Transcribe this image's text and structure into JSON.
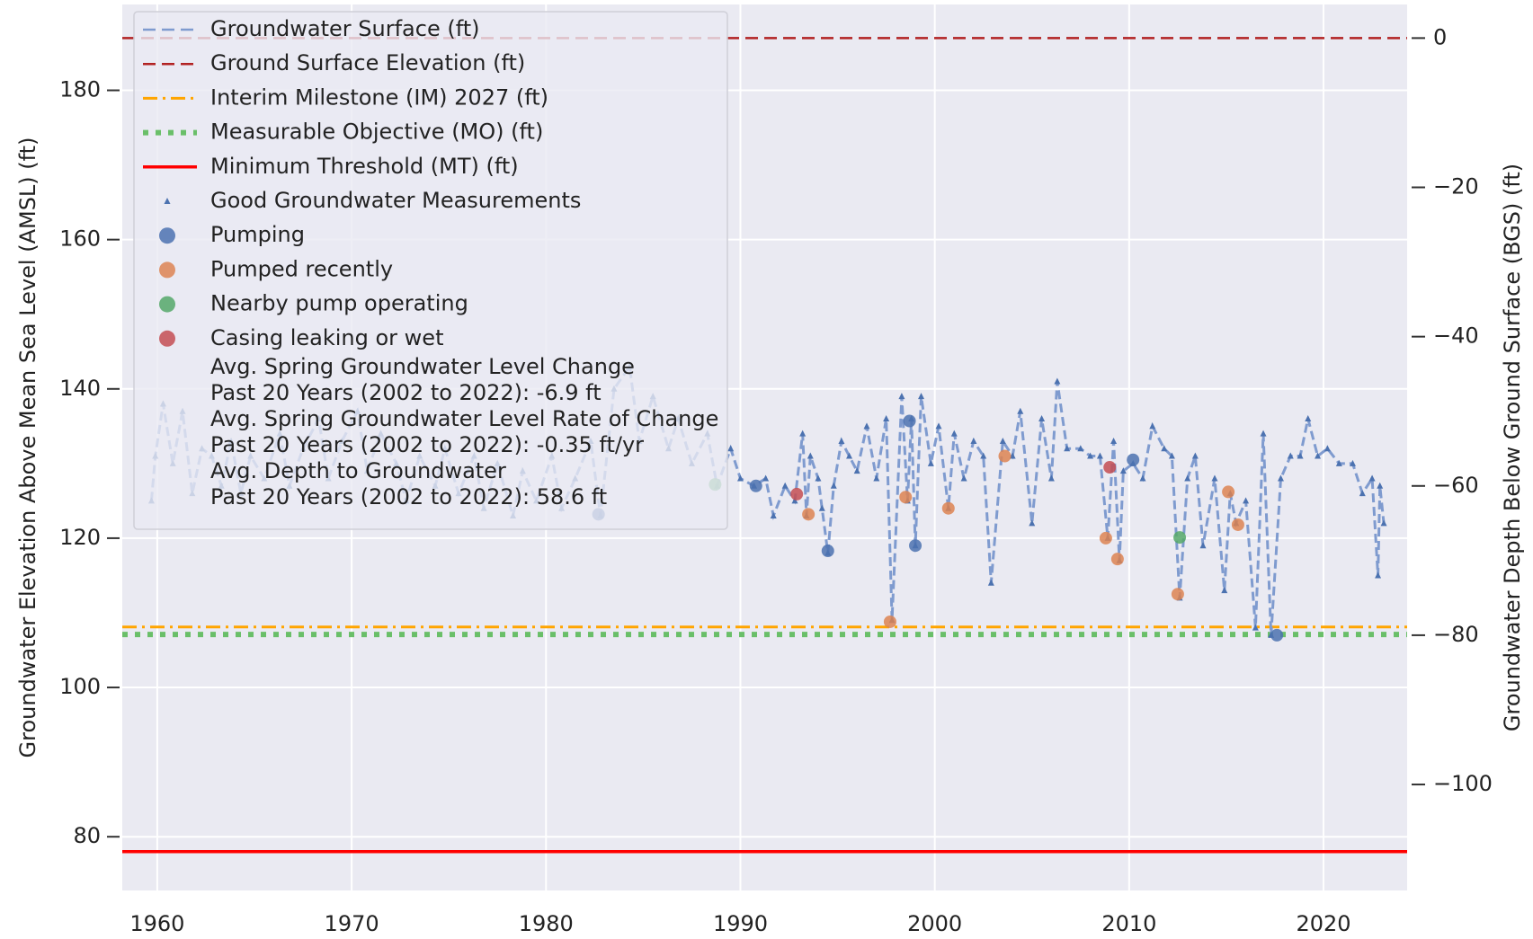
{
  "chart_data": {
    "type": "line",
    "y_label": "Groundwater Elevation Above Mean Sea Level (AMSL) (ft)",
    "y2_label": "Groundwater Depth Below Ground Surface (BGS) (ft)",
    "xlim": [
      1958.2,
      2024.3
    ],
    "ylim": [
      72.8,
      191.5
    ],
    "y2lim": [
      -114.2,
      4.5
    ],
    "xticks": [
      1960,
      1970,
      1980,
      1990,
      2000,
      2010,
      2020
    ],
    "yticks": [
      80,
      100,
      120,
      140,
      160,
      180
    ],
    "y2ticks": [
      0,
      {
        "value": -20,
        "label": "−20"
      },
      {
        "value": -40,
        "label": "−40"
      },
      {
        "value": -60,
        "label": "−60"
      },
      {
        "value": -80,
        "label": "−80"
      },
      {
        "value": -100,
        "label": "−100"
      }
    ],
    "grid": true,
    "legend": "upper left",
    "series": [
      {
        "name": "Groundwater Surface (ft)",
        "color": "#7f9bcf",
        "marker_name": "Good Groundwater Measurements",
        "marker_color": "#4c72b0",
        "x": [
          1959.7,
          1959.9,
          1960.3,
          1960.8,
          1961.3,
          1961.8,
          1962.3,
          1962.8,
          1963.3,
          1963.8,
          1964.3,
          1964.8,
          1965.5,
          1966.3,
          1966.8,
          1967.5,
          1968.3,
          1968.8,
          1969.5,
          1970.3,
          1970.8,
          1971.5,
          1972.3,
          1972.8,
          1973.5,
          1974.3,
          1974.8,
          1975.5,
          1976.3,
          1976.8,
          1977.5,
          1978.3,
          1978.8,
          1979.5,
          1980.3,
          1980.8,
          1981.5,
          1982.3,
          1982.8,
          1983.5,
          1984.3,
          1984.8,
          1985.5,
          1986.3,
          1986.8,
          1987.5,
          1988.3,
          1988.8,
          1989.5,
          1990.0,
          1990.7,
          1991.3,
          1991.7,
          1992.3,
          1992.8,
          1993.2,
          1993.4,
          1993.6,
          1994.0,
          1994.2,
          1994.5,
          1994.8,
          1995.2,
          1995.6,
          1996.0,
          1996.5,
          1997.0,
          1997.5,
          1997.8,
          1998.3,
          1998.6,
          1998.8,
          1999.0,
          1999.3,
          1999.8,
          2000.2,
          2000.7,
          2001.0,
          2001.5,
          2002.0,
          2002.5,
          2002.9,
          2003.5,
          2004.0,
          2004.4,
          2005.0,
          2005.5,
          2006.0,
          2006.3,
          2006.8,
          2007.5,
          2008.0,
          2008.5,
          2008.9,
          2009.2,
          2009.5,
          2009.7,
          2010.2,
          2010.7,
          2011.2,
          2011.8,
          2012.2,
          2012.6,
          2013.0,
          2013.4,
          2013.8,
          2014.4,
          2014.9,
          2015.2,
          2015.5,
          2016.0,
          2016.5,
          2016.9,
          2017.3,
          2017.8,
          2018.3,
          2018.8,
          2019.2,
          2019.7,
          2020.2,
          2020.8,
          2021.5,
          2022.0,
          2022.5,
          2022.8,
          2022.9,
          2023.1
        ],
        "values": [
          125,
          131,
          138,
          130,
          137,
          126,
          132,
          131,
          127,
          133,
          126,
          131,
          128,
          134,
          127,
          132,
          136,
          128,
          133,
          137,
          129,
          134,
          130,
          125,
          131,
          127,
          132,
          126,
          131,
          124,
          130,
          123,
          129,
          125,
          131,
          124,
          128,
          133,
          123,
          140,
          143,
          133,
          139,
          132,
          136,
          130,
          134,
          127,
          132,
          128,
          127,
          128,
          123,
          127,
          125,
          134,
          123,
          131,
          128,
          124,
          118,
          127,
          133,
          131,
          129,
          135,
          128,
          136,
          109,
          139,
          125,
          136,
          119,
          139,
          130,
          135,
          124,
          134,
          128,
          133,
          131,
          114,
          133,
          131,
          137,
          122,
          136,
          128,
          141,
          132,
          132,
          131,
          131,
          120,
          133,
          117,
          129,
          130,
          128,
          135,
          132,
          131,
          112,
          128,
          131,
          119,
          128,
          113,
          126,
          122,
          125,
          108,
          134,
          107,
          128,
          131,
          131,
          136,
          131,
          132,
          130,
          130,
          126,
          128,
          115,
          127,
          122
        ]
      }
    ],
    "hlines": [
      {
        "name": "Ground Surface Elevation (ft)",
        "color": "#b22222",
        "style": "dashed",
        "value": 187
      },
      {
        "name": "Interim Milestone (IM) 2027 (ft)",
        "color": "#ffa500",
        "style": "dashdot",
        "value": 108.1
      },
      {
        "name": "Measurable Objective (MO) (ft)",
        "color": "#6abf69",
        "style": "dotted",
        "value": 107.1
      },
      {
        "name": "Minimum Threshold (MT) (ft)",
        "color": "#ff0000",
        "style": "solid",
        "value": 78
      }
    ],
    "scatter": [
      {
        "name": "Pumping",
        "color": "#4c72b0",
        "x": [
          1982.7,
          1990.8,
          1994.5,
          1998.7,
          1999.0,
          2010.2,
          2017.6
        ],
        "values": [
          123.2,
          127,
          118.3,
          135.7,
          119,
          130.5,
          107
        ]
      },
      {
        "name": "Pumped recently",
        "color": "#dd8452",
        "x": [
          1993.5,
          1997.7,
          1998.5,
          2000.7,
          2003.6,
          2008.8,
          2009.4,
          2012.5,
          2015.1,
          2015.6
        ],
        "values": [
          123.2,
          108.8,
          125.5,
          124,
          131,
          120,
          117.2,
          112.5,
          126.2,
          121.8
        ]
      },
      {
        "name": "Nearby pump operating",
        "color": "#55a868",
        "x": [
          1988.7,
          2012.6
        ],
        "values": [
          127.2,
          120.1
        ]
      },
      {
        "name": "Casing leaking or wet",
        "color": "#c44e52",
        "x": [
          1992.9,
          2009.0
        ],
        "values": [
          125.9,
          129.5
        ]
      }
    ],
    "annotations": [
      "Avg. Spring Groundwater Level Change",
      "Past 20 Years (2002 to 2022): -6.9 ft",
      "Avg. Spring Groundwater Level Rate of Change",
      "Past 20 Years (2002 to 2022): -0.35 ft/yr",
      "Avg. Depth to Groundwater",
      "Past 20 Years (2002 to 2022): 58.6 ft"
    ]
  }
}
